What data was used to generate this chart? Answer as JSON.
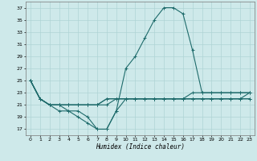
{
  "xlabel": "Humidex (Indice chaleur)",
  "background_color": "#cee9ea",
  "grid_color": "#afd4d5",
  "line_color": "#1e6b6b",
  "ylim": [
    16,
    38
  ],
  "xlim": [
    -0.5,
    23.5
  ],
  "yticks": [
    17,
    19,
    21,
    23,
    25,
    27,
    29,
    31,
    33,
    35,
    37
  ],
  "xticks": [
    0,
    1,
    2,
    3,
    4,
    5,
    6,
    7,
    8,
    9,
    10,
    11,
    12,
    13,
    14,
    15,
    16,
    17,
    18,
    19,
    20,
    21,
    22,
    23
  ],
  "x": [
    0,
    1,
    2,
    3,
    4,
    5,
    6,
    7,
    8,
    9,
    10,
    11,
    12,
    13,
    14,
    15,
    16,
    17,
    18,
    19,
    20,
    21,
    22,
    23
  ],
  "y_main": [
    25,
    22,
    21,
    21,
    20,
    20,
    19,
    17,
    17,
    20,
    27,
    29,
    32,
    35,
    37,
    37,
    36,
    30,
    23,
    23,
    23,
    23,
    23,
    23
  ],
  "y_low": [
    25,
    22,
    21,
    20,
    20,
    19,
    18,
    17,
    17,
    20,
    22,
    22,
    22,
    22,
    22,
    22,
    22,
    22,
    22,
    22,
    22,
    22,
    22,
    22
  ],
  "y_flat1": [
    25,
    22,
    21,
    21,
    21,
    21,
    21,
    21,
    21,
    22,
    22,
    22,
    22,
    22,
    22,
    22,
    22,
    22,
    22,
    22,
    22,
    22,
    22,
    22
  ],
  "y_flat2": [
    25,
    22,
    21,
    21,
    21,
    21,
    21,
    21,
    22,
    22,
    22,
    22,
    22,
    22,
    22,
    22,
    22,
    22,
    22,
    22,
    22,
    22,
    22,
    23
  ],
  "y_flat3": [
    25,
    22,
    21,
    21,
    21,
    21,
    21,
    21,
    22,
    22,
    22,
    22,
    22,
    22,
    22,
    22,
    22,
    23,
    23,
    23,
    23,
    23,
    23,
    23
  ]
}
